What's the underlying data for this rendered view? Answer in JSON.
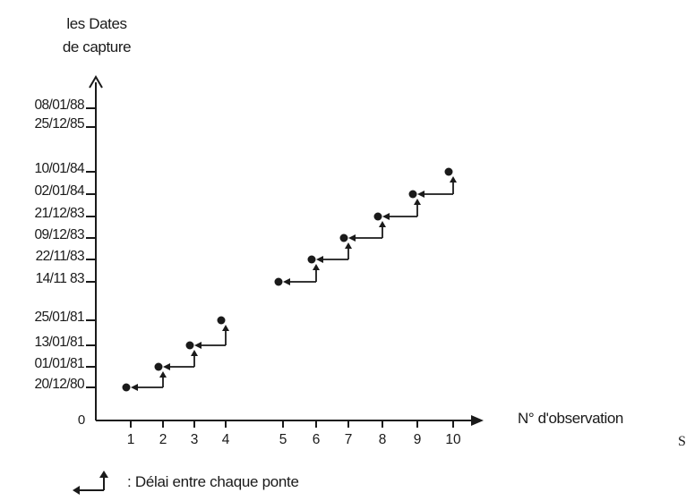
{
  "chart_data": {
    "type": "scatter",
    "ylabel_lines": [
      "les Dates",
      "de capture"
    ],
    "xlabel": "N° d'observation",
    "origin_label": "0",
    "y_ticks": [
      {
        "label": "08/01/88",
        "y": "1988-01-08"
      },
      {
        "label": "25/12/85",
        "y": "1985-12-25"
      },
      {
        "label": "10/01/84",
        "y": "1984-01-10"
      },
      {
        "label": "02/01/84",
        "y": "1984-01-02"
      },
      {
        "label": "21/12/83",
        "y": "1983-12-21"
      },
      {
        "label": "09/12/83",
        "y": "1983-12-09"
      },
      {
        "label": "22/11/83",
        "y": "1983-11-22"
      },
      {
        "label": "14/11 83",
        "y": "1983-11-14"
      },
      {
        "label": "25/01/81",
        "y": "1981-01-25"
      },
      {
        "label": "13/01/81",
        "y": "1981-01-13"
      },
      {
        "label": "01/01/81",
        "y": "1981-01-01"
      },
      {
        "label": "20/12/80",
        "y": "1980-12-20"
      }
    ],
    "x_ticks": [
      {
        "label": "1",
        "x": 1
      },
      {
        "label": "2",
        "x": 2
      },
      {
        "label": "3",
        "x": 3
      },
      {
        "label": "4",
        "x": 4
      },
      {
        "label": "5",
        "x": 5
      },
      {
        "label": "6",
        "x": 6
      },
      {
        "label": "7",
        "x": 7
      },
      {
        "label": "8",
        "x": 8
      },
      {
        "label": "9",
        "x": 9
      },
      {
        "label": "10",
        "x": 10
      }
    ],
    "points": [
      {
        "x": 1,
        "y": "1980-12-20"
      },
      {
        "x": 2,
        "y": "1981-01-01"
      },
      {
        "x": 3,
        "y": "1981-01-13"
      },
      {
        "x": 4,
        "y": "1981-01-25"
      },
      {
        "x": 5,
        "y": "1983-11-14"
      },
      {
        "x": 6,
        "y": "1983-11-22"
      },
      {
        "x": 7,
        "y": "1983-12-09"
      },
      {
        "x": 8,
        "y": "1983-12-21"
      },
      {
        "x": 9,
        "y": "1984-01-02"
      },
      {
        "x": 10,
        "y": "1984-01-10"
      }
    ],
    "legend": [
      {
        "symbol": "delay-step-arrow",
        "label": ": Délai entre chaque ponte"
      }
    ],
    "grid": false
  },
  "stray_mark": "S"
}
